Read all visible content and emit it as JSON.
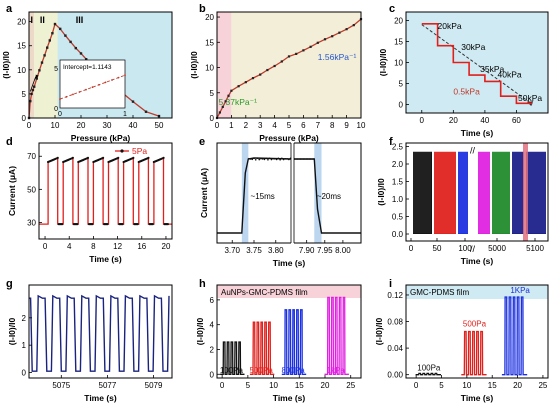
{
  "panels": [
    {
      "id": "a",
      "type": "line",
      "xlabel": "Pressure (kPa)",
      "ylabel": "(I-I0)/I0",
      "xlim": [
        0,
        55
      ],
      "ylim": [
        0,
        22
      ],
      "xticks": [
        0,
        10,
        20,
        30,
        40,
        50
      ],
      "yticks": [
        0,
        5,
        10,
        15,
        20
      ],
      "bands": [
        {
          "label": "I",
          "x0": 0,
          "x1": 2,
          "color": "#ecd9c7"
        },
        {
          "label": "II",
          "x0": 2,
          "x1": 11,
          "color": "#eef1d2"
        },
        {
          "label": "III",
          "x0": 11,
          "x1": 55,
          "color": "#c9e8f0"
        }
      ],
      "series": [
        {
          "color": "#c0392b",
          "marker": "square",
          "x": [
            0,
            0.5,
            1,
            1.5,
            2,
            3,
            4,
            5,
            6,
            7,
            8,
            9,
            10,
            12,
            14,
            16,
            18,
            20,
            22,
            25,
            28,
            30,
            35,
            40,
            45,
            50
          ],
          "y": [
            0,
            3.5,
            5.0,
            5.8,
            6.5,
            8.2,
            9.9,
            11.5,
            13.0,
            14.6,
            16.1,
            17.6,
            19.5,
            18.5,
            17.1,
            15.8,
            14.5,
            13.4,
            12.2,
            10.5,
            8.8,
            7.7,
            5.6,
            3.4,
            1.3,
            0.4
          ]
        }
      ],
      "inset": {
        "annotation": "Intercept=1.1143",
        "xlim": [
          0,
          1
        ],
        "ylim": [
          0,
          6
        ],
        "xticks": [
          0,
          1
        ],
        "yticks": [
          0,
          5
        ],
        "x": [
          0,
          0.1,
          0.2,
          0.3,
          0.4,
          0.5,
          0.6,
          0.7,
          0.8,
          0.9,
          1.0
        ],
        "y": [
          1.11,
          1.4,
          1.7,
          2.0,
          2.3,
          2.6,
          2.9,
          3.2,
          3.5,
          3.8,
          4.1
        ]
      }
    },
    {
      "id": "b",
      "type": "line",
      "xlabel": "Pressure (kPa)",
      "ylabel": "(I-I0)/I0",
      "xlim": [
        0,
        10
      ],
      "ylim": [
        0,
        21
      ],
      "xticks": [
        0,
        1,
        2,
        3,
        4,
        5,
        6,
        7,
        8,
        9,
        10
      ],
      "yticks": [
        0,
        5,
        10,
        15,
        20
      ],
      "bands": [
        {
          "label": "",
          "x0": 0,
          "x1": 1,
          "color": "#f7d2d8"
        },
        {
          "label": "",
          "x0": 1,
          "x1": 10,
          "color": "#f3eed8"
        }
      ],
      "annotations": [
        {
          "text": "1.56kPa⁻¹",
          "color": "#2255cc",
          "x": 7.0,
          "y": 11.5
        },
        {
          "text": "5.37kPa⁻¹",
          "color": "#2a9a2a",
          "x": 0.1,
          "y": 2.6
        }
      ],
      "series": [
        {
          "color": "#c0392b",
          "marker": "square",
          "x": [
            0,
            0.2,
            0.4,
            0.6,
            0.8,
            1.0,
            1.5,
            2,
            2.5,
            3,
            3.5,
            4,
            4.5,
            5,
            5.5,
            6,
            6.5,
            7,
            7.5,
            8,
            8.5,
            9,
            9.5,
            10
          ],
          "y": [
            0,
            1.1,
            2.2,
            3.3,
            4.4,
            5.4,
            6.3,
            7.1,
            7.9,
            8.6,
            9.5,
            10.3,
            11.2,
            12.2,
            12.7,
            13.4,
            14.1,
            14.9,
            15.6,
            16.2,
            16.9,
            17.6,
            18.4,
            19.6
          ]
        }
      ]
    },
    {
      "id": "c",
      "type": "line",
      "xlabel": "Time (s)",
      "ylabel": "(I-I0)/I0",
      "xlim": [
        -10,
        80
      ],
      "ylim": [
        -2,
        22
      ],
      "xticks": [
        0,
        20,
        40,
        60
      ],
      "yticks": [
        0,
        5,
        10,
        15,
        20
      ],
      "bands": [
        {
          "label": "",
          "x0": -10,
          "x1": 80,
          "color": "#cfeaf2"
        }
      ],
      "annotations": [
        {
          "text": "20kPa",
          "color": "#000000",
          "x": 10,
          "y": 18
        },
        {
          "text": "30kPa",
          "color": "#000000",
          "x": 25,
          "y": 13
        },
        {
          "text": "35kPa",
          "color": "#000000",
          "x": 37,
          "y": 7.8
        },
        {
          "text": "40kPa",
          "color": "#000000",
          "x": 48,
          "y": 6.4
        },
        {
          "text": "50kPa",
          "color": "#000000",
          "x": 61,
          "y": 0.9
        },
        {
          "text": "0.5kPa",
          "color": "#c0392b",
          "x": 20,
          "y": 2.4
        }
      ],
      "series": [
        {
          "color": "#e0201c",
          "marker": "none",
          "x": [
            0,
            10,
            10,
            20,
            20,
            30,
            30,
            40,
            40,
            50,
            50,
            60,
            60,
            70
          ],
          "y": [
            19.2,
            19.2,
            14.0,
            14.0,
            10.0,
            10.0,
            7.0,
            7.0,
            5.5,
            5.5,
            2.0,
            2.0,
            0.3,
            0.3
          ]
        },
        {
          "color": "#333333",
          "marker": "none",
          "dashed": true,
          "x": [
            0,
            70
          ],
          "y": [
            19.0,
            0.1
          ]
        }
      ]
    },
    {
      "id": "d",
      "type": "line",
      "xlabel": "Time (s)",
      "ylabel": "Current (μA)",
      "xlim": [
        -1,
        21
      ],
      "ylim": [
        20,
        78
      ],
      "xticks": [
        0,
        4,
        8,
        12,
        16,
        20
      ],
      "yticks": [
        30,
        50,
        70
      ],
      "legend": {
        "label": "5Pa",
        "color": "#e0201c",
        "position": "top-right"
      },
      "cycles": {
        "starts": [
          0.5,
          3.0,
          5.5,
          8.0,
          10.5,
          13.0,
          15.5,
          18.0
        ],
        "on": 1.6,
        "low": 29,
        "high": 66.5,
        "hi_end": 69
      }
    },
    {
      "id": "e",
      "type": "line",
      "xlabel": "Time (s)",
      "ylabel": "Current (μA)",
      "xlim": [
        3.665,
        8.05
      ],
      "ylim": [
        25,
        75
      ],
      "xticks": [
        3.7,
        3.75,
        3.8,
        7.9,
        7.95,
        8.0
      ],
      "xticklabels": [
        "3.70",
        "3.75",
        "3.80",
        "7.90",
        "7.95",
        "8.00"
      ],
      "axis_break": "7.85",
      "annotations": [
        {
          "text": "~15ms",
          "color": "#000000"
        },
        {
          "text": "~20ms",
          "color": "#000000"
        }
      ],
      "low": 30,
      "high": 67
    },
    {
      "id": "f",
      "type": "line",
      "xlabel": "Time (s)",
      "ylabel": "(I-I0)/I0",
      "ylim": [
        -0.2,
        2.6
      ],
      "yticks": [
        0.0,
        0.5,
        1.0,
        1.5,
        2.0,
        2.5
      ],
      "yticklabels": [
        "0.0",
        "0.5",
        "1.0",
        "1.5",
        "2.0",
        "2.5"
      ],
      "xticklabels": [
        "0",
        "50",
        "100",
        "5000",
        "5100"
      ],
      "segment_colors": [
        "#111111",
        "#e0201c",
        "#1a2fe0",
        "#e020e0",
        "#1f8a2a",
        "#1a1f8a"
      ],
      "highlight_color": "#e0707e",
      "peak": 2.35
    },
    {
      "id": "g",
      "type": "line",
      "xlabel": "Time (s)",
      "ylabel": "(I-I0)/I0",
      "xlim": [
        5073.6,
        5079.8
      ],
      "ylim": [
        -0.2,
        3.2
      ],
      "xticks": [
        5075,
        5077,
        5079
      ],
      "yticks": [
        0,
        1,
        2
      ],
      "series_color": "#1a237e",
      "period": 0.63,
      "peak": 2.8,
      "start": 5073.62
    },
    {
      "id": "h",
      "type": "line",
      "xlabel": "Time (s)",
      "ylabel": "(I-I0)/I0",
      "xlim": [
        -1,
        27
      ],
      "ylim": [
        -0.3,
        7.2
      ],
      "xticks": [
        0,
        5,
        10,
        15,
        20,
        25
      ],
      "yticks": [
        0,
        2,
        4,
        6
      ],
      "title": "AuNPs-GMC-PDMS film",
      "groups": [
        {
          "label": "100Pa",
          "color": "#111111",
          "start": 0.2,
          "peak": 2.6
        },
        {
          "label": "500Pa",
          "color": "#e0201c",
          "start": 6.0,
          "peak": 4.2
        },
        {
          "label": "800Pa",
          "color": "#1a2fe0",
          "start": 12.2,
          "peak": 5.2
        },
        {
          "label": "1kPa",
          "color": "#e020e0",
          "start": 20.5,
          "peak": 6.2
        }
      ],
      "period": 0.75
    },
    {
      "id": "i",
      "type": "line",
      "xlabel": "Time (s)",
      "ylabel": "(I-I0)/I0",
      "xlim": [
        -2,
        26
      ],
      "ylim": [
        -0.005,
        0.135
      ],
      "xticks": [
        0,
        5,
        10,
        15,
        20,
        25
      ],
      "yticks": [
        0,
        0.04,
        0.08,
        0.12
      ],
      "yticklabels": [
        "0.00",
        "0.04",
        "0.08",
        "0.12"
      ],
      "title": "GMC-PDMS film",
      "groups": [
        {
          "label": "100Pa",
          "color": "#111111",
          "start": 0.5,
          "peak": 0.002
        },
        {
          "label": "500Pa",
          "color": "#e0201c",
          "start": 9.5,
          "peak": 0.065
        },
        {
          "label": "1KPa",
          "color": "#1a2fe0",
          "start": 17.5,
          "peak": 0.117
        }
      ],
      "period": 0.8
    }
  ],
  "panel_letters": [
    "a",
    "b",
    "c",
    "d",
    "e",
    "f",
    "g",
    "h",
    "i"
  ],
  "region_labels": [
    "I",
    "II",
    "III"
  ]
}
